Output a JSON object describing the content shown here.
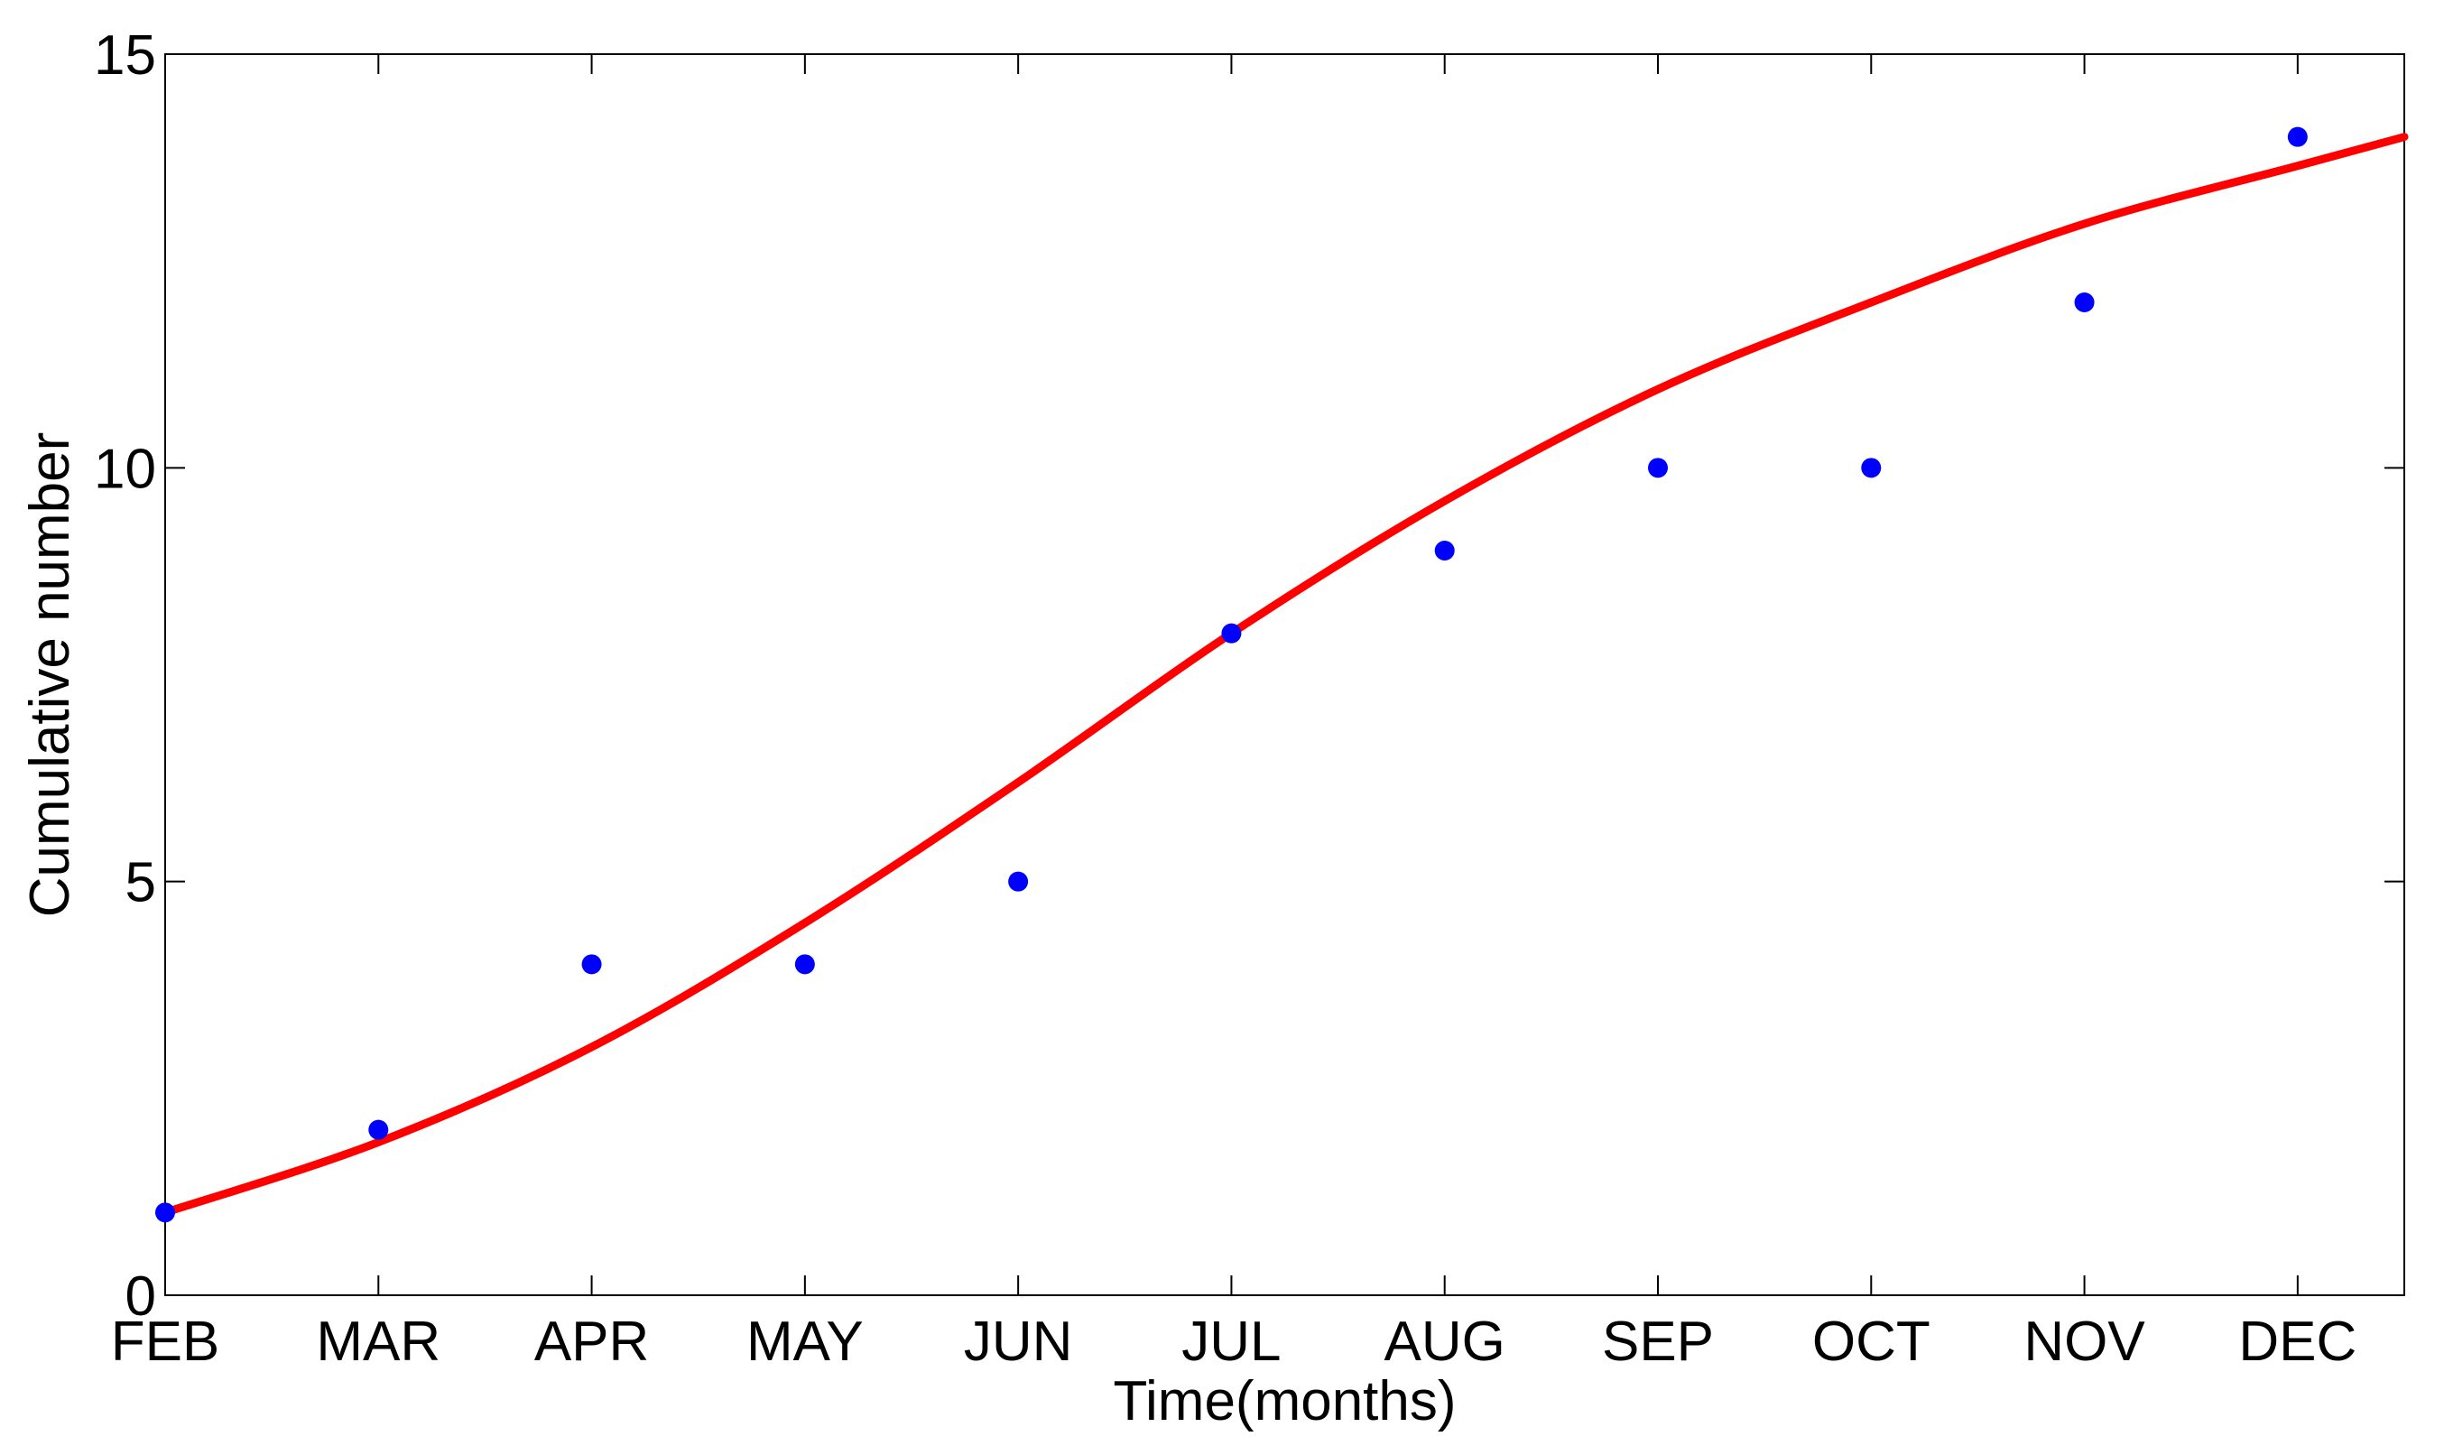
{
  "chart_data": {
    "type": "line",
    "title": "",
    "xlabel": "Time(months)",
    "ylabel": "Cumulative number",
    "categories": [
      "FEB",
      "MAR",
      "APR",
      "MAY",
      "JUN",
      "JUL",
      "AUG",
      "SEP",
      "OCT",
      "NOV",
      "DEC"
    ],
    "xlim": [
      0,
      10.5
    ],
    "ylim": [
      0,
      15
    ],
    "yticks": [
      0,
      5,
      10,
      15
    ],
    "grid": false,
    "series": [
      {
        "kind": "scatter",
        "color": "#0000ff",
        "x": [
          0,
          1,
          2,
          3,
          4,
          5,
          6,
          7,
          8,
          9,
          10
        ],
        "y": [
          1,
          2,
          4,
          4,
          5,
          8,
          9,
          10,
          10,
          12,
          14
        ]
      },
      {
        "kind": "line",
        "color": "#ff0000",
        "x": [
          0,
          1,
          2,
          3,
          4,
          5,
          6,
          7,
          8,
          9,
          10,
          10.5
        ],
        "y": [
          1.0,
          1.85,
          3.0,
          4.5,
          6.2,
          8.0,
          9.6,
          10.95,
          12.0,
          12.95,
          13.65,
          14.0
        ]
      }
    ]
  }
}
